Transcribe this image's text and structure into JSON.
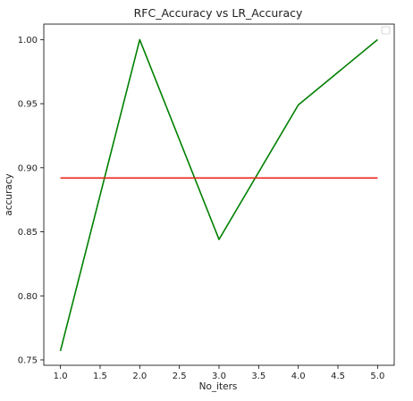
{
  "chart_data": {
    "type": "line",
    "title": "RFC_Accuracy vs LR_Accuracy",
    "xlabel": "No_iters",
    "ylabel": "accuracy",
    "xlim": [
      0.79,
      5.21
    ],
    "ylim": [
      0.7458,
      1.0121
    ],
    "x_ticks": [
      1.0,
      1.5,
      2.0,
      2.5,
      3.0,
      3.5,
      4.0,
      4.5,
      5.0
    ],
    "x_tick_labels": [
      "1.0",
      "1.5",
      "2.0",
      "2.5",
      "3.0",
      "3.5",
      "4.0",
      "4.5",
      "5.0"
    ],
    "y_ticks": [
      0.75,
      0.8,
      0.85,
      0.9,
      0.95,
      1.0
    ],
    "y_tick_labels": [
      "0.75",
      "0.80",
      "0.85",
      "0.90",
      "0.95",
      "1.00"
    ],
    "grid": false,
    "legend": {
      "placement": "top-right",
      "entries": []
    },
    "series": [
      {
        "color": "#008000",
        "x": [
          1,
          2,
          3,
          4,
          5
        ],
        "values": [
          0.757,
          1.0,
          0.844,
          0.949,
          1.0
        ]
      },
      {
        "color": "#e8261a",
        "x": [
          1,
          2,
          3,
          4,
          5
        ],
        "values": [
          0.892,
          0.892,
          0.892,
          0.892,
          0.892
        ]
      }
    ]
  }
}
